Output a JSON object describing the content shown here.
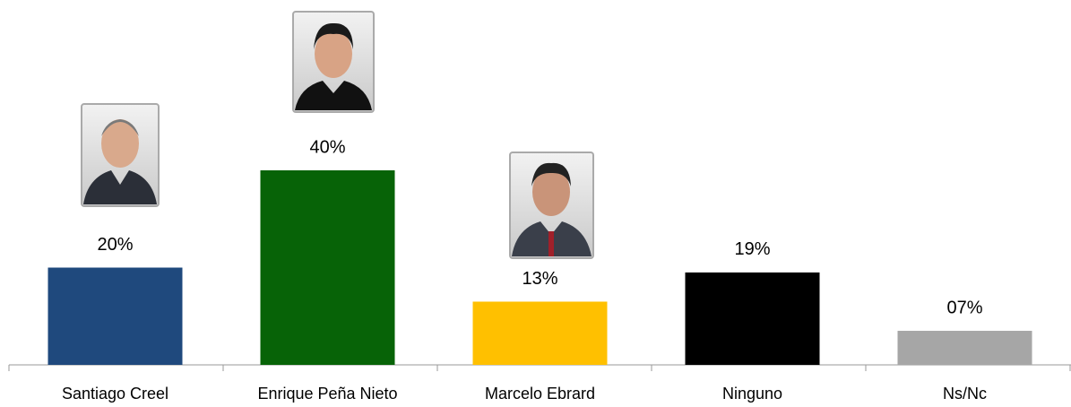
{
  "chart_data": {
    "type": "bar",
    "categories": [
      "Santiago Creel",
      "Enrique Peña Nieto",
      "Marcelo Ebrard",
      "Ninguno",
      "Ns/Nc"
    ],
    "values": [
      20,
      40,
      13,
      19,
      7
    ],
    "value_labels": [
      "20%",
      "40%",
      "13%",
      "19%",
      "07%"
    ],
    "colors": [
      "#1f497d",
      "#076307",
      "#ffc000",
      "#000000",
      "#a6a6a6"
    ]
  }
}
